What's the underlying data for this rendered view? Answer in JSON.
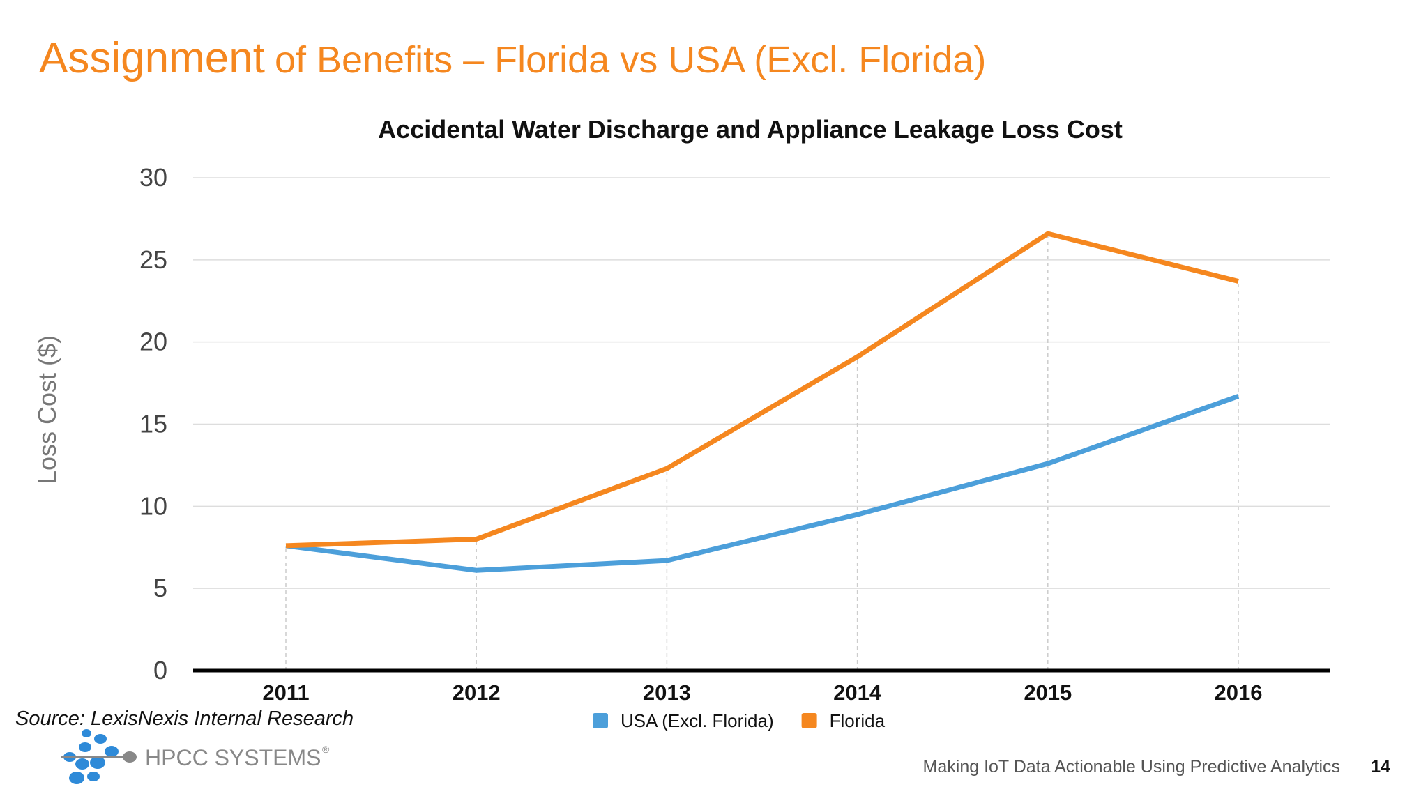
{
  "slide": {
    "title_lead": "Assignment",
    "title_rest": "of Benefits – Florida vs USA (Excl. Florida)",
    "source": "Source: LexisNexis Internal Research",
    "logo": "HPCC SYSTEMS",
    "logo_mark": "®",
    "footer": "Making IoT Data Actionable Using Predictive Analytics",
    "page_number": "14"
  },
  "chart_data": {
    "type": "line",
    "title": "Accidental Water Discharge and Appliance Leakage Loss Cost",
    "y_label": "Loss Cost ($)",
    "categories": [
      "2011",
      "2012",
      "2013",
      "2014",
      "2015",
      "2016"
    ],
    "series": [
      {
        "name": "USA (Excl. Florida)",
        "color": "#4c9fda",
        "values": [
          7.6,
          6.1,
          6.7,
          9.5,
          12.6,
          16.7
        ]
      },
      {
        "name": "Florida",
        "color": "#f5871f",
        "values": [
          7.6,
          8.0,
          12.3,
          19.1,
          26.6,
          23.7
        ]
      }
    ],
    "ylim": [
      0,
      30
    ],
    "yticks": [
      0,
      5,
      10,
      15,
      20,
      25,
      30
    ],
    "grid": true,
    "legend": "bottom"
  }
}
